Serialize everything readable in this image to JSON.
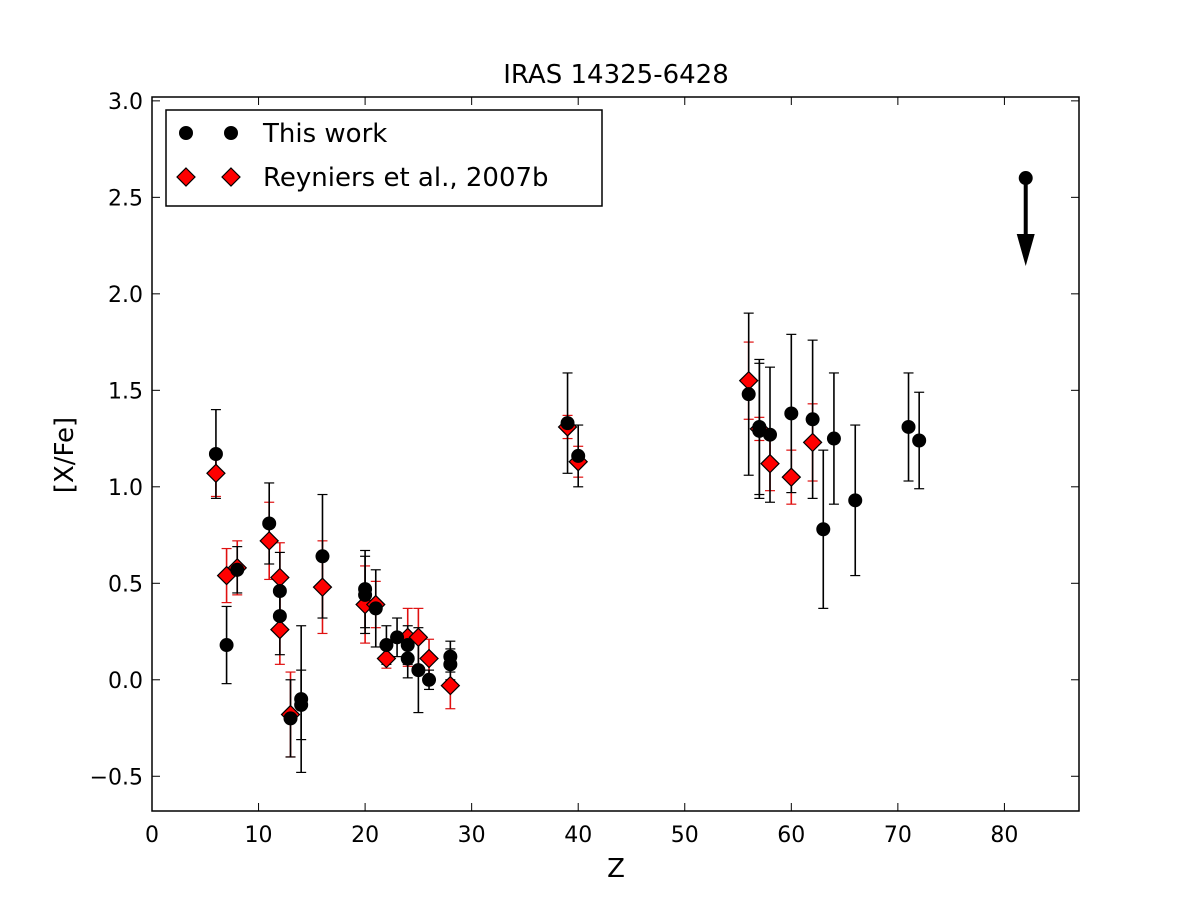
{
  "chart_data": {
    "type": "scatter",
    "title": "IRAS 14325-6428",
    "xlabel": "Z",
    "ylabel": "[X/Fe]",
    "xlim": [
      0,
      87
    ],
    "ylim": [
      -0.68,
      3.02
    ],
    "xticks": [
      "0",
      "10",
      "20",
      "30",
      "40",
      "50",
      "60",
      "70",
      "80"
    ],
    "yticks": [
      "−0.5",
      "0.0",
      "0.5",
      "1.0",
      "1.5",
      "2.0",
      "2.5",
      "3.0"
    ],
    "grid": false,
    "legend_position": "top-left",
    "series": [
      {
        "name": "This work",
        "marker": "circle",
        "color": "#000000",
        "points": [
          {
            "x": 6,
            "y": 1.17,
            "err": 0.23
          },
          {
            "x": 7,
            "y": 0.18,
            "err": 0.2
          },
          {
            "x": 8,
            "y": 0.57,
            "err": 0.12
          },
          {
            "x": 11,
            "y": 0.81,
            "err": 0.21
          },
          {
            "x": 12,
            "y": 0.46,
            "err": 0.2
          },
          {
            "x": 12,
            "y": 0.33,
            "err": 0.2
          },
          {
            "x": 13,
            "y": -0.2,
            "err": 0.2
          },
          {
            "x": 14,
            "y": -0.1,
            "err": 0.38
          },
          {
            "x": 14,
            "y": -0.13,
            "err": 0.18
          },
          {
            "x": 16,
            "y": 0.64,
            "err": 0.32
          },
          {
            "x": 20,
            "y": 0.47,
            "err": 0.2
          },
          {
            "x": 20,
            "y": 0.44,
            "err": 0.2
          },
          {
            "x": 21,
            "y": 0.37,
            "err": 0.2
          },
          {
            "x": 22,
            "y": 0.18,
            "err": 0.1
          },
          {
            "x": 23,
            "y": 0.22,
            "err": 0.1
          },
          {
            "x": 24,
            "y": 0.18,
            "err": 0.1
          },
          {
            "x": 24,
            "y": 0.11,
            "err": 0.1
          },
          {
            "x": 25,
            "y": 0.05,
            "err": 0.22
          },
          {
            "x": 26,
            "y": 0.0,
            "err": 0.05
          },
          {
            "x": 28,
            "y": 0.12,
            "err": 0.08
          },
          {
            "x": 28,
            "y": 0.08,
            "err": 0.08
          },
          {
            "x": 39,
            "y": 1.33,
            "err": 0.26
          },
          {
            "x": 40,
            "y": 1.16,
            "err": 0.16
          },
          {
            "x": 56,
            "y": 1.48,
            "err": 0.42
          },
          {
            "x": 57,
            "y": 1.31,
            "err": 0.35
          },
          {
            "x": 57,
            "y": 1.29,
            "err": 0.35
          },
          {
            "x": 58,
            "y": 1.27,
            "err": 0.35
          },
          {
            "x": 60,
            "y": 1.38,
            "err": 0.41
          },
          {
            "x": 62,
            "y": 1.35,
            "err": 0.41
          },
          {
            "x": 63,
            "y": 0.78,
            "err": 0.41
          },
          {
            "x": 64,
            "y": 1.25,
            "err": 0.34
          },
          {
            "x": 66,
            "y": 0.93,
            "err": 0.39
          },
          {
            "x": 71,
            "y": 1.31,
            "err": 0.28
          },
          {
            "x": 72,
            "y": 1.24,
            "err": 0.25
          }
        ],
        "upper_limits": [
          {
            "x": 82,
            "y": 2.6
          }
        ]
      },
      {
        "name": "Reyniers et al., 2007b",
        "marker": "diamond",
        "color": "#ff0000",
        "points": [
          {
            "x": 6,
            "y": 1.07,
            "err": 0.12
          },
          {
            "x": 7,
            "y": 0.54,
            "err": 0.14
          },
          {
            "x": 8,
            "y": 0.58,
            "err": 0.14
          },
          {
            "x": 11,
            "y": 0.72,
            "err": 0.2
          },
          {
            "x": 12,
            "y": 0.53,
            "err": 0.18
          },
          {
            "x": 12,
            "y": 0.26,
            "err": 0.18
          },
          {
            "x": 13,
            "y": -0.18,
            "err": 0.22
          },
          {
            "x": 16,
            "y": 0.48,
            "err": 0.24
          },
          {
            "x": 20,
            "y": 0.39,
            "err": 0.2
          },
          {
            "x": 21,
            "y": 0.39,
            "err": 0.12
          },
          {
            "x": 22,
            "y": 0.11,
            "err": 0.05
          },
          {
            "x": 24,
            "y": 0.22,
            "err": 0.15
          },
          {
            "x": 25,
            "y": 0.22,
            "err": 0.15
          },
          {
            "x": 26,
            "y": 0.11,
            "err": 0.1
          },
          {
            "x": 28,
            "y": -0.03,
            "err": 0.12
          },
          {
            "x": 39,
            "y": 1.31,
            "err": 0.06
          },
          {
            "x": 40,
            "y": 1.13,
            "err": 0.08
          },
          {
            "x": 56,
            "y": 1.55,
            "err": 0.2
          },
          {
            "x": 57,
            "y": 1.3,
            "err": 0.06
          },
          {
            "x": 58,
            "y": 1.12,
            "err": 0.14
          },
          {
            "x": 60,
            "y": 1.05,
            "err": 0.14
          },
          {
            "x": 62,
            "y": 1.23,
            "err": 0.2
          }
        ]
      }
    ]
  }
}
